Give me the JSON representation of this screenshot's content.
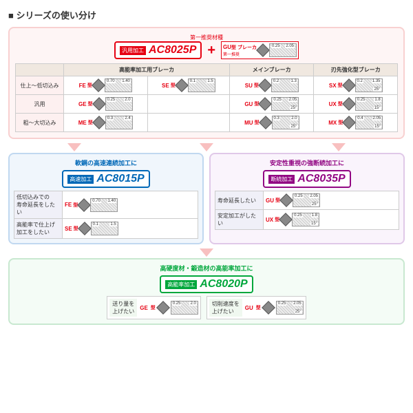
{
  "title": "シリーズの使い分け",
  "top": {
    "rec_label": "第一推奨材種",
    "main_grade": {
      "tag": "汎用加工",
      "name": "AC8025P"
    },
    "plus": "+",
    "breaker": {
      "label": "GU",
      "sub": "型 ブレーカ",
      "rec": "第一推奨",
      "dim1": "0.25",
      "dim2": "2.05",
      "angle": "25°"
    },
    "col_headers": [
      "高能率加工用ブレーカ",
      "メインブレーカ",
      "刃先強化型ブレーカ"
    ],
    "rows": [
      {
        "head": "仕上〜低切込み",
        "cells": [
          {
            "l1": "FE",
            "sub": "型",
            "d1": "0.70",
            "d2": "1.40"
          },
          {
            "l1": "SE",
            "sub": "型",
            "d1": "0.1",
            "d2": "1.5"
          },
          {
            "l1": "SU",
            "sub": "型",
            "d1": "0.2",
            "d2": "1.3"
          },
          {
            "l1": "SX",
            "sub": "型",
            "d1": "0.2",
            "d2": "1.35",
            "a": "25°"
          }
        ]
      },
      {
        "head": "汎用",
        "cells": [
          {
            "l1": "GE",
            "sub": "型",
            "d1": "0.25",
            "d2": "2.0"
          },
          null,
          {
            "l1": "GU",
            "sub": "型",
            "d1": "0.25",
            "d2": "2.05",
            "a": "25°"
          },
          {
            "l1": "UX",
            "sub": "型",
            "d1": "0.25",
            "d2": "1.8",
            "a": "15°"
          }
        ]
      },
      {
        "head": "粗〜大切込み",
        "cells": [
          {
            "l1": "ME",
            "sub": "型",
            "d1": "0.3",
            "d2": "2.4"
          },
          null,
          {
            "l1": "MU",
            "sub": "型",
            "d1": "0.3",
            "d2": "2.0",
            "a": "25°"
          },
          {
            "l1": "MX",
            "sub": "型",
            "d1": "0.4",
            "d2": "2.05",
            "a": "15°"
          }
        ]
      }
    ]
  },
  "mid_left": {
    "title": "軟鋼の高速連続加工に",
    "grade": {
      "tag": "高速加工",
      "name": "AC8015P"
    },
    "rows": [
      {
        "h": "低切込みでの\n寿命延長をしたい",
        "l": "FE",
        "sub": "型",
        "d1": "0.70",
        "d2": "1.40"
      },
      {
        "h": "高能率で仕上げ\n加工をしたい",
        "l": "SE",
        "sub": "型",
        "d1": "0.1",
        "d2": "1.5"
      }
    ]
  },
  "mid_right": {
    "title": "安定性重視の強断続加工に",
    "grade": {
      "tag": "断続加工",
      "name": "AC8035P"
    },
    "rows": [
      {
        "h": "寿命延長したい",
        "l": "GU",
        "sub": "型",
        "d1": "0.25",
        "d2": "2.05",
        "a": "25°"
      },
      {
        "h": "安定加工がしたい",
        "l": "UX",
        "sub": "型",
        "d1": "0.25",
        "d2": "1.8",
        "a": "15°"
      }
    ]
  },
  "bottom": {
    "title": "高硬度材・鍛造材の高能率加工に",
    "grade": {
      "tag": "高能率加工",
      "name": "AC8020P"
    },
    "cells": [
      {
        "h": "送り量を\n上げたい",
        "l": "GE",
        "sub": "型",
        "d1": "0.25",
        "d2": "2.0"
      },
      {
        "h": "切削速度を\n上げたい",
        "l": "GU",
        "sub": "型",
        "d1": "0.25",
        "d2": "2.05",
        "a": "25°"
      }
    ]
  },
  "colors": {
    "red": "#e60012",
    "blue": "#0068b7",
    "purple": "#920783",
    "green": "#00a73c"
  }
}
